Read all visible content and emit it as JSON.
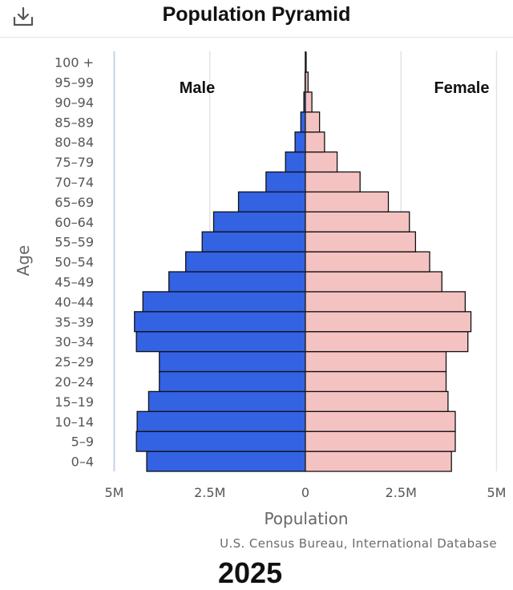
{
  "header": {
    "title": "Population Pyramid",
    "download_icon": "download-icon"
  },
  "chart_data": {
    "type": "bar",
    "orientation": "horizontal-diverging",
    "categories": [
      "0-4",
      "5-9",
      "10-14",
      "15-19",
      "20-24",
      "25-29",
      "30-34",
      "35-39",
      "40-44",
      "45-49",
      "50-54",
      "55-59",
      "60-64",
      "65-69",
      "70-74",
      "75-79",
      "80-84",
      "85-89",
      "90-94",
      "95-99",
      "100 +"
    ],
    "series": [
      {
        "name": "Male",
        "color": "#3362e3",
        "values": [
          4.15,
          4.42,
          4.4,
          4.1,
          3.82,
          3.82,
          4.42,
          4.47,
          4.25,
          3.57,
          3.13,
          2.7,
          2.4,
          1.75,
          1.03,
          0.52,
          0.27,
          0.12,
          0.04,
          0.01,
          0.002
        ]
      },
      {
        "name": "Female",
        "color": "#f5c2c2",
        "values": [
          3.82,
          3.92,
          3.92,
          3.73,
          3.68,
          3.68,
          4.25,
          4.33,
          4.18,
          3.57,
          3.25,
          2.88,
          2.72,
          2.17,
          1.43,
          0.83,
          0.5,
          0.37,
          0.17,
          0.07,
          0.02
        ]
      }
    ],
    "unit": "M",
    "xlim": [
      -5,
      5
    ],
    "x_ticks": [
      -5,
      -2.5,
      0,
      2.5,
      5
    ],
    "x_tick_labels": [
      "5M",
      "2.5M",
      "0",
      "2.5M",
      "5M"
    ],
    "xlabel": "Population",
    "ylabel": "Age",
    "grid": "vertical",
    "side_labels": {
      "left": "Male",
      "right": "Female"
    }
  },
  "footer": {
    "source": "U.S. Census Bureau, International Database",
    "year": "2025"
  }
}
